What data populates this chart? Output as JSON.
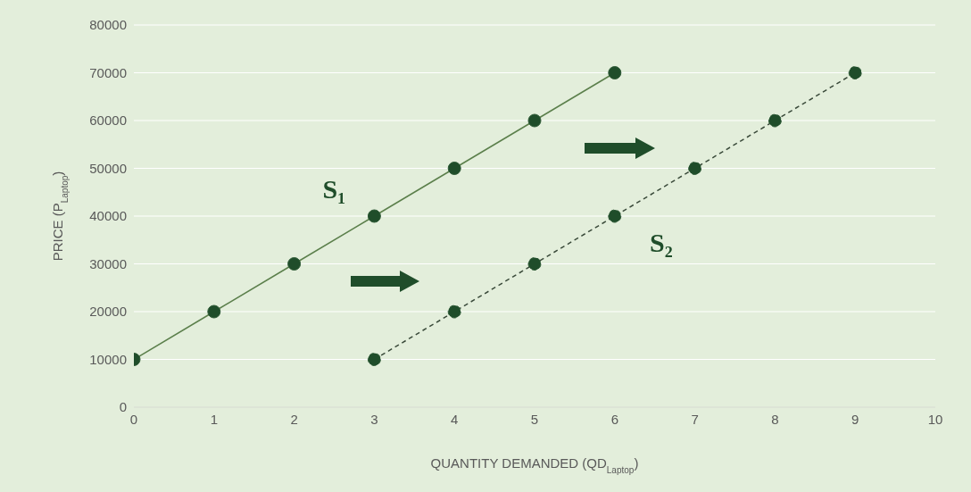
{
  "chart_data": {
    "type": "line",
    "xlabel": "QUANTITY DEMANDED (QD$_{Laptop}$)",
    "ylabel": "PRICE (P$_{Laptop}$)",
    "series": [
      {
        "name": "S₁",
        "color": "#5b7f4b",
        "x": [
          0,
          1,
          2,
          3,
          4,
          5,
          6
        ],
        "values": [
          10000,
          20000,
          30000,
          40000,
          50000,
          60000,
          70000
        ],
        "line_style": "solid"
      },
      {
        "name": "S₂",
        "color": "#3a4a3a",
        "x": [
          3,
          4,
          5,
          6,
          7,
          8,
          9
        ],
        "values": [
          10000,
          20000,
          30000,
          40000,
          50000,
          60000,
          70000
        ],
        "line_style": "dashed"
      }
    ],
    "xlim": [
      0,
      10
    ],
    "xticks": [
      0,
      1,
      2,
      3,
      4,
      5,
      6,
      7,
      8,
      9,
      10
    ],
    "ylim": [
      0,
      80000
    ],
    "yticks": [
      0,
      10000,
      20000,
      30000,
      40000,
      50000,
      60000,
      70000,
      80000
    ],
    "grid": "y",
    "marker": "circle"
  }
}
